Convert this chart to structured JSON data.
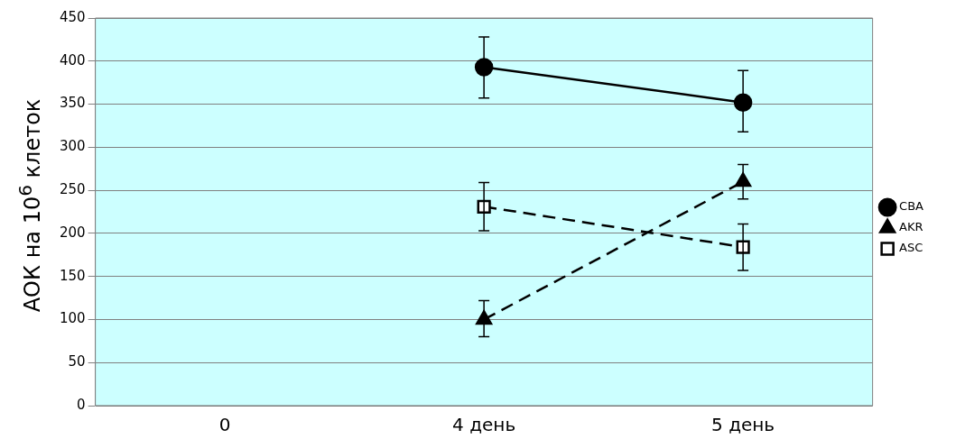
{
  "chart_data": {
    "type": "line",
    "ylabel": "АОК на 10$^{6}$ клеток",
    "categories": [
      "0",
      "4 день",
      "5 день"
    ],
    "series": [
      {
        "name": "CBA",
        "color": "#000000",
        "values": [
          null,
          393,
          352
        ],
        "errors": [
          null,
          [
            357,
            428
          ],
          [
            318,
            389
          ]
        ],
        "marker": "circle",
        "line_style": "solid"
      },
      {
        "name": "AKR",
        "color": "#000000",
        "values": [
          null,
          100,
          260
        ],
        "errors": [
          null,
          [
            80,
            122
          ],
          [
            240,
            280
          ]
        ],
        "marker": "triangle",
        "line_style": "dashed"
      },
      {
        "name": "ASC",
        "color": "#000000",
        "values": [
          null,
          231,
          184
        ],
        "errors": [
          null,
          [
            203,
            259
          ],
          [
            157,
            211
          ]
        ],
        "marker": "square",
        "line_style": "dashed"
      }
    ],
    "ylim": [
      0,
      450
    ],
    "yticks": [
      0,
      50,
      100,
      150,
      200,
      250,
      300,
      350,
      400,
      450
    ],
    "grid": "y",
    "legend": "right"
  }
}
